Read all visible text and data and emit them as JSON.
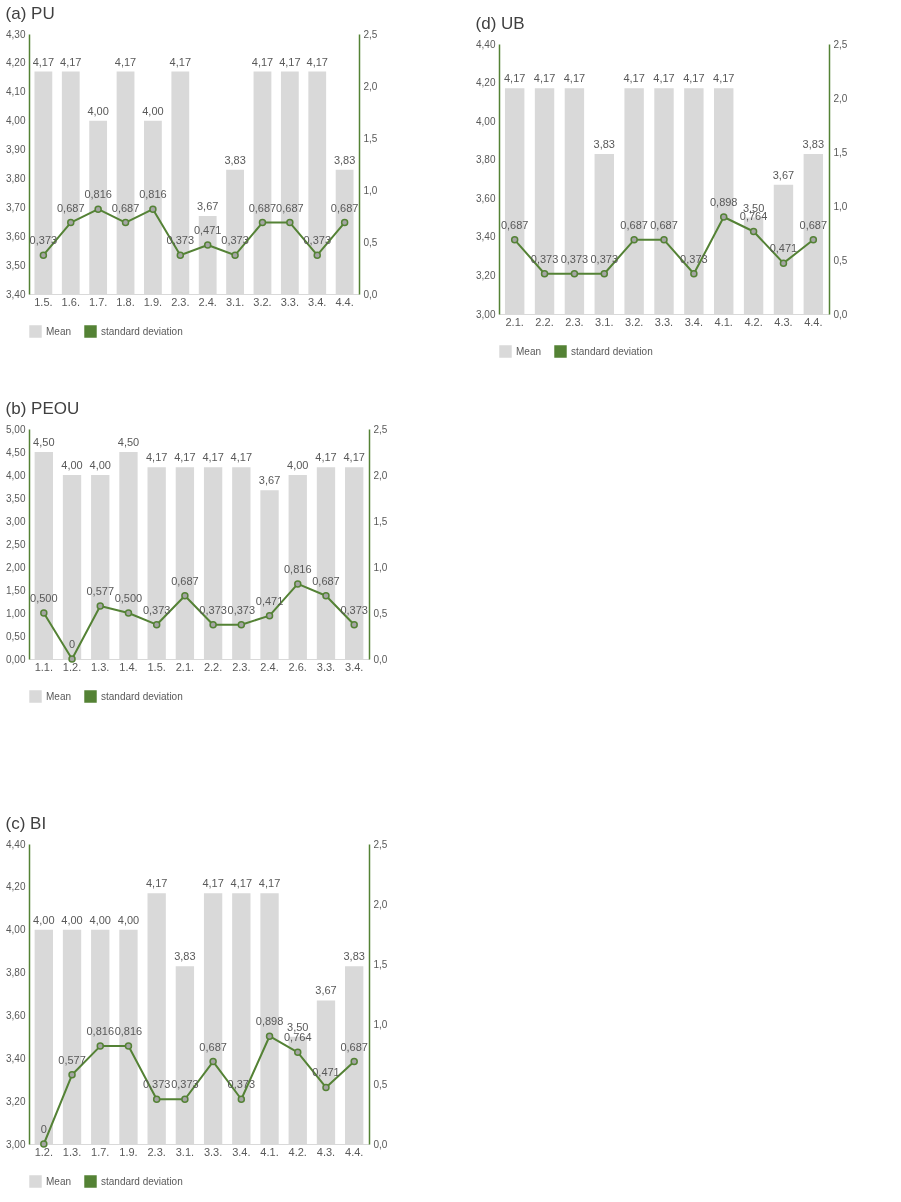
{
  "chart_data": [
    {
      "type": "bar",
      "title": "(a) PU",
      "legend": "bottom",
      "marker": "circle",
      "categories": [
        "1.5.",
        "1.6.",
        "1.7.",
        "1.8.",
        "1.9.",
        "2.3.",
        "2.4.",
        "3.1.",
        "3.2.",
        "3.3.",
        "3.4.",
        "4.4."
      ],
      "ylim": [
        3.4,
        4.3
      ],
      "yticks": [
        {
          "value": 3.4,
          "label": "3,40"
        },
        {
          "value": 3.5,
          "label": "3,50"
        },
        {
          "value": 3.6,
          "label": "3,60"
        },
        {
          "value": 3.7,
          "label": "3,70"
        },
        {
          "value": 3.8,
          "label": "3,80"
        },
        {
          "value": 3.9,
          "label": "3,90"
        },
        {
          "value": 4.0,
          "label": "4,00"
        },
        {
          "value": 4.1,
          "label": "4,10"
        },
        {
          "value": 4.2,
          "label": "4,20"
        },
        {
          "value": 4.3,
          "label": "4,30"
        }
      ],
      "y2lim": [
        0,
        2.5
      ],
      "y2ticks": [
        {
          "value": 0,
          "label": "0,0"
        },
        {
          "value": 0.5,
          "label": "0,5"
        },
        {
          "value": 1,
          "label": "1,0"
        },
        {
          "value": 1.5,
          "label": "1,5"
        },
        {
          "value": 2,
          "label": "2,0"
        },
        {
          "value": 2.5,
          "label": "2,5"
        }
      ],
      "series": [
        {
          "name": "Mean",
          "type": "bar",
          "color": "#d9d9d9",
          "values": [
            4.17,
            4.17,
            4.0,
            4.17,
            4.0,
            4.17,
            3.67,
            3.83,
            4.17,
            4.17,
            4.17,
            3.83
          ],
          "value_labels": [
            "4,17",
            "4,17",
            "4,00",
            "4,17",
            "4,00",
            "4,17",
            "3,67",
            "3,83",
            "4,17",
            "4,17",
            "4,17",
            "3,83"
          ]
        },
        {
          "name": "standard deviation",
          "type": "line",
          "axis": "y2",
          "color": "#548235",
          "values": [
            0.373,
            0.687,
            0.816,
            0.687,
            0.816,
            0.373,
            0.471,
            0.373,
            0.687,
            0.687,
            0.373,
            0.687
          ],
          "value_labels": [
            "0,373",
            "0,687",
            "0,816",
            "0,687",
            "0,816",
            "0,373",
            "0,471",
            "0,373",
            "0,687",
            "0,687",
            "0,373",
            "0,687"
          ]
        }
      ]
    },
    {
      "type": "bar",
      "title": "(d) UB",
      "legend": "bottom",
      "marker": "circle",
      "categories": [
        "2.1.",
        "2.2.",
        "2.3.",
        "3.1.",
        "3.2.",
        "3.3.",
        "3.4.",
        "4.1.",
        "4.2.",
        "4.3.",
        "4.4."
      ],
      "ylim": [
        3.0,
        4.4
      ],
      "yticks": [
        {
          "value": 3.0,
          "label": "3,00"
        },
        {
          "value": 3.2,
          "label": "3,20"
        },
        {
          "value": 3.4,
          "label": "3,40"
        },
        {
          "value": 3.6,
          "label": "3,60"
        },
        {
          "value": 3.8,
          "label": "3,80"
        },
        {
          "value": 4.0,
          "label": "4,00"
        },
        {
          "value": 4.2,
          "label": "4,20"
        },
        {
          "value": 4.4,
          "label": "4,40"
        }
      ],
      "y2lim": [
        0,
        2.5
      ],
      "y2ticks": [
        {
          "value": 0,
          "label": "0,0"
        },
        {
          "value": 0.5,
          "label": "0,5"
        },
        {
          "value": 1,
          "label": "1,0"
        },
        {
          "value": 1.5,
          "label": "1,5"
        },
        {
          "value": 2,
          "label": "2,0"
        },
        {
          "value": 2.5,
          "label": "2,5"
        }
      ],
      "series": [
        {
          "name": "Mean",
          "type": "bar",
          "color": "#d9d9d9",
          "values": [
            4.17,
            4.17,
            4.17,
            3.83,
            4.17,
            4.17,
            4.17,
            4.17,
            3.5,
            3.67,
            3.83
          ],
          "value_labels": [
            "4,17",
            "4,17",
            "4,17",
            "3,83",
            "4,17",
            "4,17",
            "4,17",
            "4,17",
            "3,50",
            "3,67",
            "3,83"
          ]
        },
        {
          "name": "standard deviation",
          "type": "line",
          "axis": "y2",
          "color": "#548235",
          "values": [
            0.687,
            0.373,
            0.373,
            0.373,
            0.687,
            0.687,
            0.373,
            0.898,
            0.764,
            0.471,
            0.687
          ],
          "value_labels": [
            "0,687",
            "0,373",
            "0,373",
            "0,373",
            "0,687",
            "0,687",
            "0,373",
            "0,898",
            "0,764",
            "0,471",
            "0,687"
          ]
        }
      ]
    },
    {
      "type": "bar",
      "title": "(b) PEOU",
      "legend": "bottom",
      "marker": "circle",
      "categories": [
        "1.1.",
        "1.2.",
        "1.3.",
        "1.4.",
        "1.5.",
        "2.1.",
        "2.2.",
        "2.3.",
        "2.4.",
        "2.6.",
        "3.3.",
        "3.4."
      ],
      "ylim": [
        0,
        5
      ],
      "yticks": [
        {
          "value": 0,
          "label": "0,00"
        },
        {
          "value": 0.5,
          "label": "0,50"
        },
        {
          "value": 1,
          "label": "1,00"
        },
        {
          "value": 1.5,
          "label": "1,50"
        },
        {
          "value": 2,
          "label": "2,00"
        },
        {
          "value": 2.5,
          "label": "2,50"
        },
        {
          "value": 3,
          "label": "3,00"
        },
        {
          "value": 3.5,
          "label": "3,50"
        },
        {
          "value": 4,
          "label": "4,00"
        },
        {
          "value": 4.5,
          "label": "4,50"
        },
        {
          "value": 5,
          "label": "5,00"
        }
      ],
      "y2lim": [
        0,
        2.5
      ],
      "y2ticks": [
        {
          "value": 0,
          "label": "0,0"
        },
        {
          "value": 0.5,
          "label": "0,5"
        },
        {
          "value": 1,
          "label": "1,0"
        },
        {
          "value": 1.5,
          "label": "1,5"
        },
        {
          "value": 2,
          "label": "2,0"
        },
        {
          "value": 2.5,
          "label": "2,5"
        }
      ],
      "series": [
        {
          "name": "Mean",
          "type": "bar",
          "color": "#d9d9d9",
          "values": [
            4.5,
            4.0,
            4.0,
            4.5,
            4.17,
            4.17,
            4.17,
            4.17,
            3.67,
            4.0,
            4.17,
            4.17
          ],
          "value_labels": [
            "4,50",
            "4,00",
            "4,00",
            "4,50",
            "4,17",
            "4,17",
            "4,17",
            "4,17",
            "3,67",
            "4,00",
            "4,17",
            "4,17"
          ]
        },
        {
          "name": "standard deviation",
          "type": "line",
          "axis": "y2",
          "color": "#548235",
          "values": [
            0.5,
            0,
            0.577,
            0.5,
            0.373,
            0.687,
            0.373,
            0.373,
            0.471,
            0.816,
            0.687,
            0.373
          ],
          "value_labels": [
            "0,500",
            "0",
            "0,577",
            "0,500",
            "0,373",
            "0,687",
            "0,373",
            "0,373",
            "0,471",
            "0,816",
            "0,687",
            "0,373"
          ]
        }
      ]
    },
    {
      "type": "bar",
      "title": "(c) BI",
      "legend": "bottom",
      "marker": "circle",
      "categories": [
        "1.2.",
        "1.3.",
        "1.7.",
        "1.9.",
        "2.3.",
        "3.1.",
        "3.3.",
        "3.4.",
        "4.1.",
        "4.2.",
        "4.3.",
        "4.4."
      ],
      "ylim": [
        3.0,
        4.4
      ],
      "yticks": [
        {
          "value": 3.0,
          "label": "3,00"
        },
        {
          "value": 3.2,
          "label": "3,20"
        },
        {
          "value": 3.4,
          "label": "3,40"
        },
        {
          "value": 3.6,
          "label": "3,60"
        },
        {
          "value": 3.8,
          "label": "3,80"
        },
        {
          "value": 4.0,
          "label": "4,00"
        },
        {
          "value": 4.2,
          "label": "4,20"
        },
        {
          "value": 4.4,
          "label": "4,40"
        }
      ],
      "y2lim": [
        0,
        2.5
      ],
      "y2ticks": [
        {
          "value": 0,
          "label": "0,0"
        },
        {
          "value": 0.5,
          "label": "0,5"
        },
        {
          "value": 1,
          "label": "1,0"
        },
        {
          "value": 1.5,
          "label": "1,5"
        },
        {
          "value": 2,
          "label": "2,0"
        },
        {
          "value": 2.5,
          "label": "2,5"
        }
      ],
      "series": [
        {
          "name": "Mean",
          "type": "bar",
          "color": "#d9d9d9",
          "values": [
            4.0,
            4.0,
            4.0,
            4.0,
            4.17,
            3.83,
            4.17,
            4.17,
            4.17,
            3.5,
            3.67,
            3.83
          ],
          "value_labels": [
            "4,00",
            "4,00",
            "4,00",
            "4,00",
            "4,17",
            "3,83",
            "4,17",
            "4,17",
            "4,17",
            "3,50",
            "3,67",
            "3,83"
          ]
        },
        {
          "name": "standard deviation",
          "type": "line",
          "axis": "y2",
          "color": "#548235",
          "values": [
            0,
            0.577,
            0.816,
            0.816,
            0.373,
            0.373,
            0.687,
            0.373,
            0.898,
            0.764,
            0.471,
            0.687
          ],
          "value_labels": [
            "0",
            "0,577",
            "0,816",
            "0,816",
            "0,373",
            "0,373",
            "0,687",
            "0,373",
            "0,898",
            "0,764",
            "0,471",
            "0,687"
          ]
        }
      ]
    }
  ]
}
